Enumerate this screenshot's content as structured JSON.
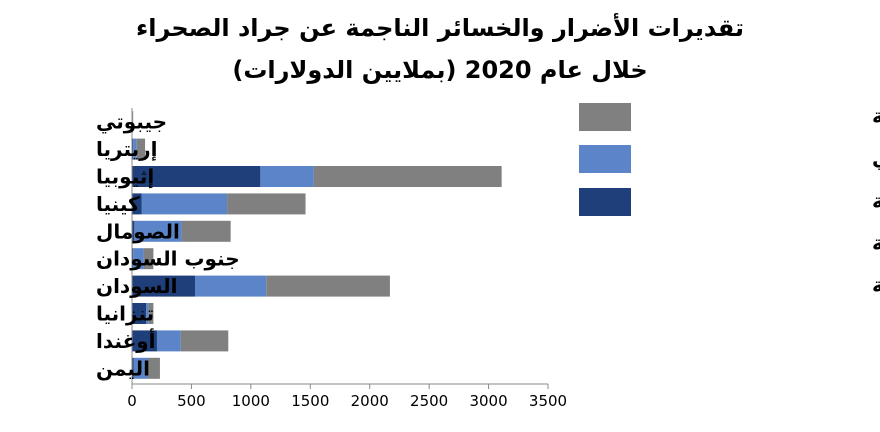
{
  "chart_data": {
    "type": "bar",
    "orientation": "horizontal",
    "stacked": true,
    "title": "تقديرات الأضرار والخسائر الناجمة عن جراد الصحراء",
    "subtitle": "خلال عام 2020 (بملايين الدولارات)",
    "categories": [
      "جيبوتي",
      "إريتريا",
      "إثيوبيا",
      "كينيا",
      "الصومال",
      "جنوب السودان",
      "السودان",
      "تنزانيا",
      "أوغندا",
      "اليمن"
    ],
    "series": [
      {
        "name": "الخسائر في إنتاجية المحاصيل الغذائية الأساسية",
        "color": "#1f3f7a",
        "values": [
          2,
          10,
          1080,
          80,
          20,
          10,
          530,
          120,
          210,
          15
        ]
      },
      {
        "name": "خسائر الإنتاج الحيواني",
        "color": "#5b85c8",
        "values": [
          3,
          30,
          450,
          720,
          400,
          90,
          600,
          20,
          200,
          120
        ]
      },
      {
        "name": "خسائر الثروة الحيوانية",
        "color": "#808080",
        "values": [
          5,
          70,
          1580,
          660,
          410,
          80,
          1040,
          40,
          400,
          100
        ]
      }
    ],
    "xlim": [
      0,
      3500
    ],
    "xticks": [
      "0",
      "500",
      "1000",
      "1500",
      "2000",
      "2500",
      "3000",
      "3500"
    ],
    "legend_position": "right",
    "grid": false
  }
}
